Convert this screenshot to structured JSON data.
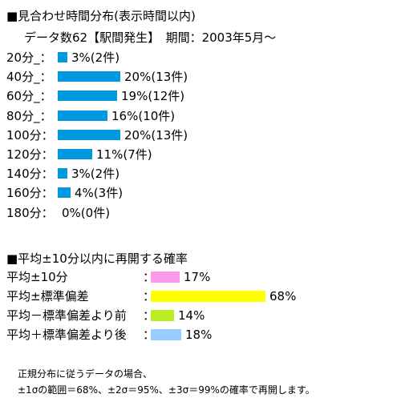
{
  "title": "■見合わせ時間分布(表示時間以内)",
  "subtitle": "データ数62【駅間発生】　期間：2003年5月～",
  "chart_data": [
    {
      "type": "bar",
      "orientation": "horizontal",
      "categories": [
        "20分_：",
        "40分_：",
        "60分_：",
        "80分_：",
        "100分：",
        "120分：",
        "140分：",
        "160分：",
        "180分："
      ],
      "values": [
        3,
        20,
        19,
        16,
        20,
        11,
        3,
        4,
        0
      ],
      "counts": [
        2,
        13,
        12,
        10,
        13,
        7,
        2,
        3,
        0
      ],
      "value_labels": [
        "3%(2件)",
        "20%(13件)",
        "19%(12件)",
        "16%(10件)",
        "20%(13件)",
        "11%(7件)",
        "3%(2件)",
        "4%(3件)",
        "0%(0件)"
      ],
      "bar_color": "#0099dd"
    },
    {
      "type": "bar",
      "orientation": "horizontal",
      "title": "■平均±10分以内に再開する確率",
      "categories": [
        "平均±10分",
        "平均±標準偏差",
        "平均－標準偏差より前",
        "平均＋標準偏差より後"
      ],
      "values": [
        17,
        68,
        14,
        18
      ],
      "value_labels": [
        "17%",
        "68%",
        "14%",
        "18%"
      ],
      "separator": "：",
      "colors": [
        "#ff99ee",
        "#ffff00",
        "#bbee22",
        "#99ccff"
      ]
    }
  ],
  "note": {
    "line1": "正規分布に従うデータの場合、",
    "line2": "±1σの範囲＝68%、±2σ＝95%、±3σ＝99%の確率で再開します。"
  }
}
